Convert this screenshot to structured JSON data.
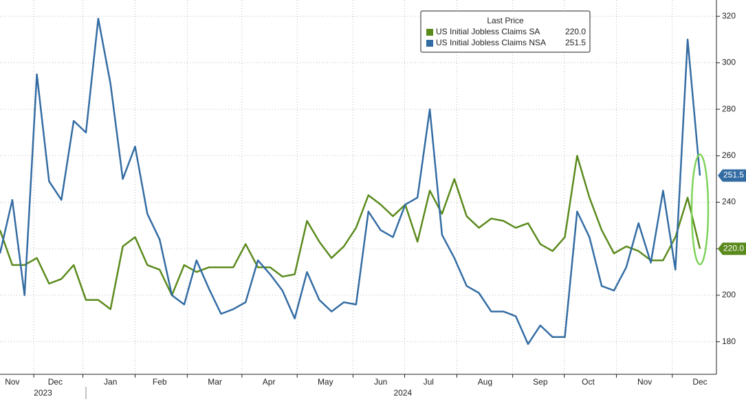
{
  "chart_data": {
    "type": "line",
    "legend_title": "Last Price",
    "legend": "top-right",
    "grid": true,
    "categories": [
      null,
      null,
      null,
      null,
      null,
      null,
      null,
      null,
      null,
      null,
      null,
      null,
      null,
      null,
      null,
      null,
      null,
      null,
      null,
      null,
      null,
      null,
      null,
      null,
      null,
      null,
      null,
      null,
      null,
      null,
      null,
      null,
      null,
      null,
      null,
      null,
      null,
      null,
      null,
      null,
      null,
      null,
      null,
      null,
      null,
      null,
      null,
      null,
      null,
      null,
      null,
      null,
      null,
      null,
      null,
      null,
      null,
      null
    ],
    "xticks": [
      {
        "value": 1.0,
        "label": "Nov"
      },
      {
        "value": 4.5,
        "label": "Dec"
      },
      {
        "value": 9.0,
        "label": "Jan"
      },
      {
        "value": 13.0,
        "label": "Feb"
      },
      {
        "value": 17.5,
        "label": "Mar"
      },
      {
        "value": 21.9,
        "label": "Apr"
      },
      {
        "value": 26.5,
        "label": "May"
      },
      {
        "value": 31.0,
        "label": "Jun"
      },
      {
        "value": 34.9,
        "label": "Jul"
      },
      {
        "value": 39.5,
        "label": "Aug"
      },
      {
        "value": 44.0,
        "label": "Sep"
      },
      {
        "value": 47.9,
        "label": "Oct"
      },
      {
        "value": 52.5,
        "label": "Nov"
      },
      {
        "value": 57.0,
        "label": "Dec"
      }
    ],
    "year_labels": [
      {
        "value": 3.5,
        "label": "2023"
      },
      {
        "value": 32.8,
        "label": "2024"
      }
    ],
    "ylim": [
      166,
      327
    ],
    "yticks": [
      180,
      200,
      220,
      240,
      260,
      280,
      300,
      320
    ],
    "series": [
      {
        "name": "US Initial Jobless Claims SA",
        "color": "#5a8a1c",
        "last_label": "220.0",
        "values": [
          228,
          213,
          213,
          216,
          205,
          207,
          213,
          198,
          198,
          194,
          221,
          225,
          213,
          211,
          200,
          213,
          210,
          212,
          212,
          212,
          222,
          212,
          212,
          208,
          209,
          232,
          223,
          216,
          221,
          229,
          243,
          239,
          234,
          239,
          223,
          245,
          235,
          250,
          234,
          229,
          233,
          232,
          229,
          231,
          222,
          219,
          225,
          260,
          242,
          228,
          218,
          221,
          219,
          215,
          215,
          225,
          242,
          220
        ]
      },
      {
        "name": "US Initial Jobless Claims NSA",
        "color": "#336ca3",
        "last_label": "251.5",
        "values": [
          218,
          241,
          200,
          295,
          249,
          241,
          275,
          270,
          319,
          291,
          250,
          264,
          235,
          224,
          200,
          196,
          215,
          203,
          192,
          194,
          197,
          215,
          209,
          202,
          190,
          210,
          198,
          193,
          197,
          196,
          236,
          228,
          225,
          239,
          242,
          280,
          226,
          216,
          204,
          201,
          193,
          193,
          191,
          179,
          187,
          182,
          182,
          236,
          225,
          204,
          202,
          212,
          231,
          214,
          245,
          211,
          310,
          251.5
        ]
      }
    ]
  }
}
